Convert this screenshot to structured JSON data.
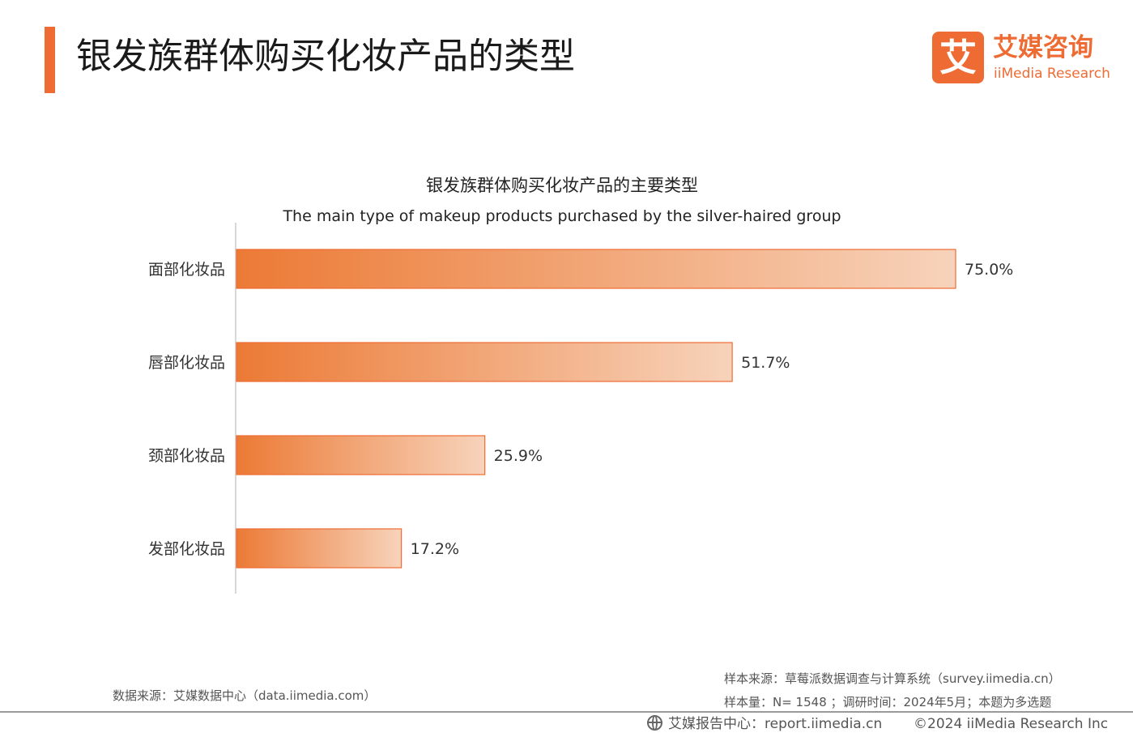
{
  "header": {
    "title": "银发族群体购买化妆产品的类型",
    "logo_mark": "艾",
    "logo_cn": "艾媒咨询",
    "logo_en": "iiMedia Research"
  },
  "colors": {
    "accent": "#ee6b33",
    "bar_start": "#ec7a35",
    "bar_end": "#f7d3bb"
  },
  "chart_data": {
    "type": "bar",
    "orientation": "horizontal",
    "title": "银发族群体购买化妆产品的主要类型",
    "subtitle": "The main type of makeup products purchased by the silver-haired group",
    "categories": [
      "面部化妆品",
      "唇部化妆品",
      "颈部化妆品",
      "发部化妆品"
    ],
    "values": [
      75.0,
      51.7,
      25.9,
      17.2
    ],
    "value_labels": [
      "75.0%",
      "51.7%",
      "25.9%",
      "17.2%"
    ],
    "unit": "%",
    "xlim": [
      0,
      75
    ],
    "grid": false,
    "legend": "none"
  },
  "footer": {
    "data_source": "数据来源：艾媒数据中心（data.iimedia.com）",
    "sample_source": "样本来源：草莓派数据调查与计算系统（survey.iimedia.cn）",
    "sample_info": "样本量：N= 1548 ；调研时间：2024年5月；本题为多选题",
    "report_center": "艾媒报告中心：report.iimedia.cn",
    "copyright": "©2024  iiMedia Research  Inc"
  }
}
